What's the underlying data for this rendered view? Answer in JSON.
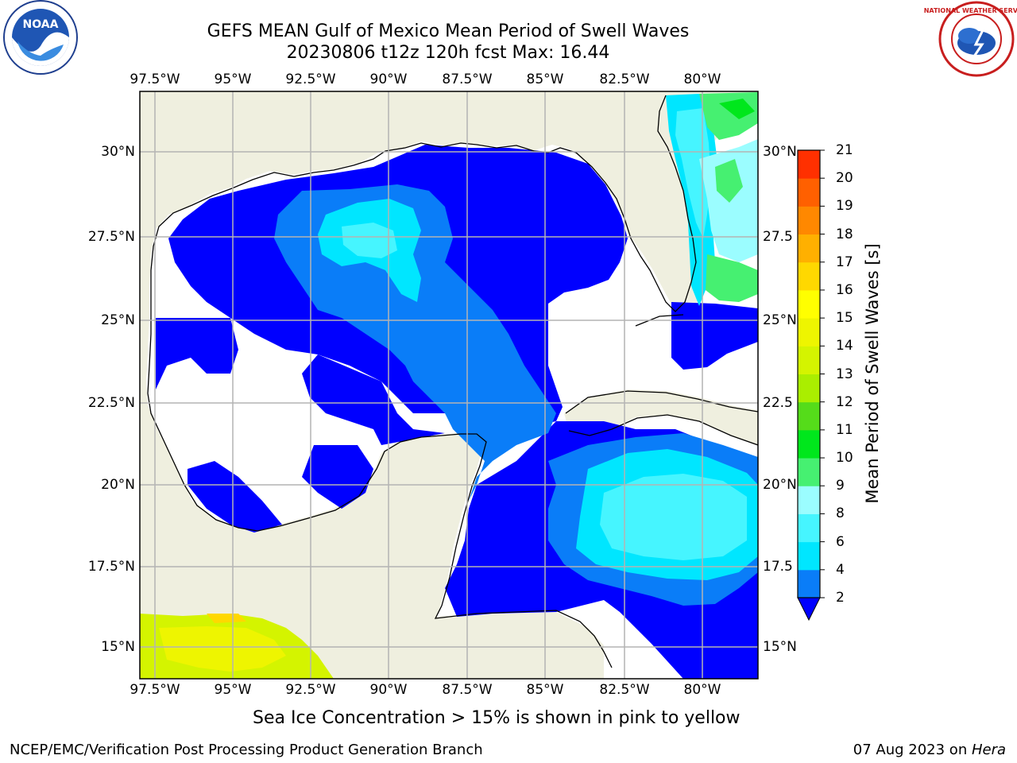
{
  "header": {
    "title_line1": "GEFS MEAN Gulf of Mexico Mean Period of Swell Waves",
    "title_line2": "20230806 t12z 120h fcst   Max: 16.44"
  },
  "logos": {
    "noaa_text": "NOAA",
    "nws_text": "NATIONAL WEATHER SERVICE"
  },
  "map": {
    "lon_ticks": [
      "97.5°W",
      "95°W",
      "92.5°W",
      "90°W",
      "87.5°W",
      "85°W",
      "82.5°W",
      "80°W"
    ],
    "lat_ticks_left": [
      "30°N",
      "27.5°N",
      "25°N",
      "22.5°N",
      "20°N",
      "17.5°N",
      "15°N"
    ],
    "lat_ticks_right": [
      "30°N",
      "27.5",
      "25°N",
      "22.5",
      "20°N",
      "17.5",
      "15°N"
    ],
    "land_color": "#efefdf",
    "grid_color": "#b4b4b4"
  },
  "colorbar": {
    "label": "Mean Period of Swell Waves [s]",
    "ticks": [
      "2",
      "4",
      "6",
      "8",
      "9",
      "10",
      "11",
      "12",
      "13",
      "14",
      "15",
      "16",
      "17",
      "18",
      "19",
      "20",
      "21"
    ],
    "colors": [
      "#0a7df8",
      "#00e6ff",
      "#46f5ff",
      "#9bfdff",
      "#46f071",
      "#00e71c",
      "#55dc1a",
      "#aaee00",
      "#d4f400",
      "#eef500",
      "#ffff00",
      "#ffd800",
      "#ffb000",
      "#ff8800",
      "#ff6000",
      "#ff3000",
      "#ff0000"
    ],
    "extend_color": "#0000ff"
  },
  "note": "Sea Ice Concentration > 15% is shown in pink to yellow",
  "footer": {
    "left": "NCEP/EMC/Verification Post Processing Product Generation Branch",
    "right_date": "07 Aug 2023 on ",
    "right_host": "Hera"
  }
}
